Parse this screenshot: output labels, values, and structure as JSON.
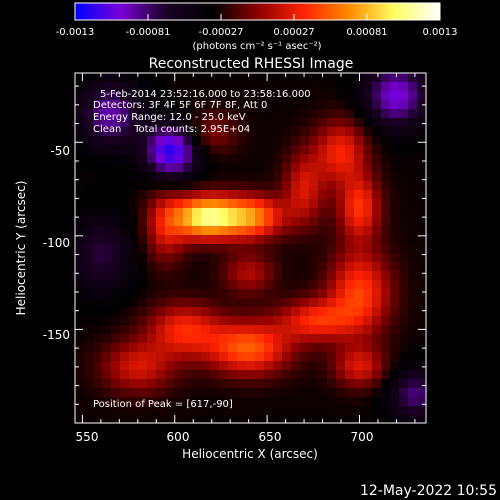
{
  "colorbar": {
    "ticks": [
      "-0.0013",
      "-0.00081",
      "-0.00027",
      "0.00027",
      "0.00081",
      "0.0013"
    ],
    "unit_label": "(photons cm⁻² s⁻¹ asec⁻²)",
    "colors": [
      "#0000ff",
      "#7a00d8",
      "#1a0024",
      "#000000",
      "#8a0000",
      "#ff2200",
      "#ff8a00",
      "#ffff60",
      "#ffffff"
    ]
  },
  "title": "Reconstructed RHESSI Image",
  "info": {
    "line1": "5-Feb-2014 23:52:16.000 to 23:58:16.000",
    "line2": "Detectors: 3F 4F 5F 6F 7F 8F, Att 0",
    "line3": "Energy Range: 12.0 - 25.0 keV",
    "line4": "Clean    Total counts: 2.95E+04",
    "peak": "Position of Peak = [617,-90]"
  },
  "axes": {
    "xlabel": "Heliocentric X (arcsec)",
    "ylabel": "Heliocentric Y (arcsec)",
    "xticks": [
      "550",
      "600",
      "650",
      "700"
    ],
    "yticks": [
      "-50",
      "-100",
      "-150"
    ]
  },
  "footer": {
    "timestamp": "12-May-2022 10:55"
  },
  "chart_data": {
    "type": "heatmap",
    "title": "Reconstructed RHESSI Image",
    "xlabel": "Heliocentric X (arcsec)",
    "ylabel": "Heliocentric Y (arcsec)",
    "xlim": [
      546,
      736
    ],
    "ylim": [
      -200,
      -13
    ],
    "zlim": [
      -0.0013,
      0.0013
    ],
    "peak": [
      617,
      -90
    ],
    "sources": [
      {
        "x": 617,
        "y": -90,
        "amp": 0.0013,
        "sx": 12,
        "sy": 8
      },
      {
        "x": 642,
        "y": -90,
        "amp": 0.0009,
        "sx": 12,
        "sy": 8
      },
      {
        "x": 670,
        "y": -75,
        "amp": 0.0005,
        "sx": 8,
        "sy": 14
      },
      {
        "x": 690,
        "y": -55,
        "amp": 0.0006,
        "sx": 10,
        "sy": 12
      },
      {
        "x": 700,
        "y": -85,
        "amp": 0.00065,
        "sx": 8,
        "sy": 12
      },
      {
        "x": 700,
        "y": -130,
        "amp": 0.0007,
        "sx": 12,
        "sy": 16
      },
      {
        "x": 676,
        "y": -145,
        "amp": 0.0006,
        "sx": 14,
        "sy": 8
      },
      {
        "x": 595,
        "y": -95,
        "amp": 0.0005,
        "sx": 8,
        "sy": 14
      },
      {
        "x": 605,
        "y": -150,
        "amp": 0.0006,
        "sx": 14,
        "sy": 10
      },
      {
        "x": 640,
        "y": -160,
        "amp": 0.0008,
        "sx": 16,
        "sy": 10
      },
      {
        "x": 580,
        "y": -170,
        "amp": 0.0005,
        "sx": 14,
        "sy": 10
      },
      {
        "x": 700,
        "y": -170,
        "amp": 0.0005,
        "sx": 10,
        "sy": 8
      },
      {
        "x": 640,
        "y": -120,
        "amp": 0.0004,
        "sx": 10,
        "sy": 8
      },
      {
        "x": 620,
        "y": -45,
        "amp": 0.0003,
        "sx": 10,
        "sy": 8
      },
      {
        "x": 598,
        "y": -55,
        "amp": -0.0009,
        "sx": 10,
        "sy": 10
      },
      {
        "x": 565,
        "y": -35,
        "amp": -0.0006,
        "sx": 12,
        "sy": 12
      },
      {
        "x": 720,
        "y": -25,
        "amp": -0.0007,
        "sx": 12,
        "sy": 12
      },
      {
        "x": 730,
        "y": -185,
        "amp": -0.0005,
        "sx": 10,
        "sy": 10
      },
      {
        "x": 560,
        "y": -110,
        "amp": -0.0004,
        "sx": 12,
        "sy": 14
      }
    ]
  }
}
